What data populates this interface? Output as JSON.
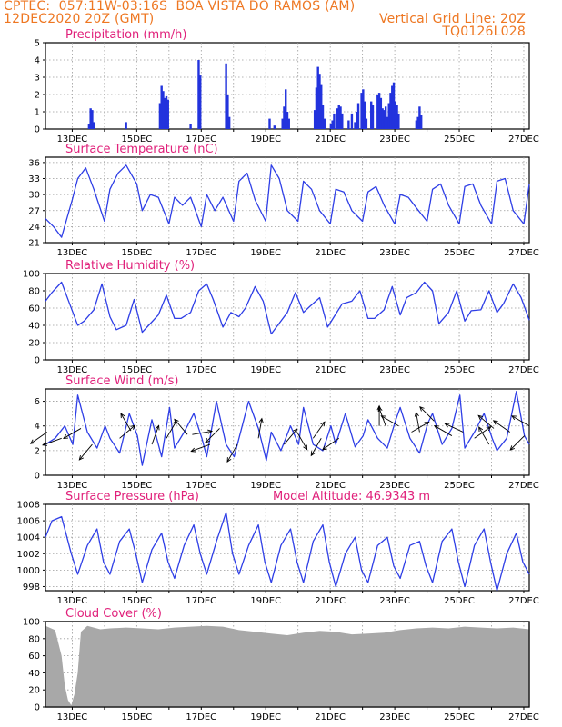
{
  "header": {
    "line1_left": "CPTEC:  057:11W-03:16S  BOA VISTA DO RAMOS (AM)",
    "line2_left": "12DEC2020 20Z (GMT)",
    "line2_right": "Vertical Grid Line: 20Z",
    "line3_right": "TQ0126L028"
  },
  "colors": {
    "header": "#ee7722",
    "title": "#e0207a",
    "series": "#2e3ee6",
    "bars": "#2233dd",
    "cloud": "#a8a8a8"
  },
  "chart_data": [
    {
      "type": "bar",
      "title": "Precipitation (mm/h)",
      "ylim": [
        0,
        5
      ],
      "yticks": [
        "0",
        "1",
        "2",
        "3",
        "4",
        "5"
      ],
      "xticks": [
        "13DEC",
        "15DEC",
        "17DEC",
        "19DEC",
        "21DEC",
        "23DEC",
        "25DEC",
        "27DEC"
      ],
      "bars": [
        [
          13.35,
          0.3
        ],
        [
          13.4,
          1.2
        ],
        [
          13.45,
          1.1
        ],
        [
          13.5,
          0.4
        ],
        [
          14.5,
          0.4
        ],
        [
          15.55,
          1.5
        ],
        [
          15.6,
          2.5
        ],
        [
          15.65,
          2.2
        ],
        [
          15.7,
          1.8
        ],
        [
          15.75,
          1.9
        ],
        [
          15.8,
          1.7
        ],
        [
          16.5,
          0.3
        ],
        [
          16.75,
          4.0
        ],
        [
          16.8,
          3.1
        ],
        [
          17.6,
          3.8
        ],
        [
          17.65,
          2.0
        ],
        [
          17.7,
          0.7
        ],
        [
          18.95,
          0.6
        ],
        [
          19.1,
          0.2
        ],
        [
          19.35,
          0.6
        ],
        [
          19.4,
          1.3
        ],
        [
          19.45,
          2.3
        ],
        [
          19.5,
          1.0
        ],
        [
          19.55,
          0.6
        ],
        [
          20.35,
          1.1
        ],
        [
          20.4,
          2.4
        ],
        [
          20.45,
          3.6
        ],
        [
          20.5,
          3.2
        ],
        [
          20.55,
          2.6
        ],
        [
          20.6,
          1.4
        ],
        [
          20.65,
          0.6
        ],
        [
          20.85,
          0.3
        ],
        [
          20.9,
          0.5
        ],
        [
          20.95,
          0.9
        ],
        [
          21.05,
          1.2
        ],
        [
          21.1,
          1.4
        ],
        [
          21.15,
          1.3
        ],
        [
          21.2,
          0.9
        ],
        [
          21.4,
          0.5
        ],
        [
          21.5,
          0.9
        ],
        [
          21.6,
          0.4
        ],
        [
          21.65,
          1.0
        ],
        [
          21.7,
          1.5
        ],
        [
          21.8,
          2.1
        ],
        [
          21.85,
          2.3
        ],
        [
          21.9,
          1.6
        ],
        [
          21.95,
          0.6
        ],
        [
          22.1,
          1.6
        ],
        [
          22.15,
          1.4
        ],
        [
          22.3,
          2.0
        ],
        [
          22.35,
          2.1
        ],
        [
          22.4,
          1.8
        ],
        [
          22.45,
          1.2
        ],
        [
          22.5,
          1.1
        ],
        [
          22.55,
          1.3
        ],
        [
          22.6,
          0.7
        ],
        [
          22.65,
          1.5
        ],
        [
          22.7,
          2.1
        ],
        [
          22.75,
          2.5
        ],
        [
          22.8,
          2.7
        ],
        [
          22.85,
          1.6
        ],
        [
          22.9,
          1.4
        ],
        [
          22.95,
          0.9
        ],
        [
          23.5,
          0.5
        ],
        [
          23.55,
          0.7
        ],
        [
          23.6,
          1.3
        ],
        [
          23.65,
          0.8
        ]
      ]
    },
    {
      "type": "line",
      "title": "Surface Temperature (nC)",
      "ylim": [
        21,
        37
      ],
      "yticks": [
        "21",
        "24",
        "27",
        "30",
        "33",
        "36"
      ],
      "xticks": [
        "13DEC",
        "15DEC",
        "17DEC",
        "19DEC",
        "21DEC",
        "23DEC",
        "25DEC",
        "27DEC"
      ],
      "x": [
        12,
        12.25,
        12.5,
        12.83,
        13,
        13.25,
        13.5,
        13.83,
        14,
        14.25,
        14.5,
        14.83,
        15,
        15.25,
        15.5,
        15.83,
        16,
        16.25,
        16.5,
        16.83,
        17,
        17.25,
        17.5,
        17.83,
        18,
        18.25,
        18.5,
        18.83,
        19,
        19.25,
        19.5,
        19.83,
        20,
        20.25,
        20.5,
        20.83,
        21,
        21.25,
        21.5,
        21.83,
        22,
        22.25,
        22.5,
        22.83,
        23,
        23.25,
        23.5,
        23.83,
        24,
        24.25,
        24.5,
        24.83,
        25,
        25.25,
        25.5,
        25.83,
        26,
        26.25,
        26.5,
        26.83,
        27
      ],
      "values": [
        25.5,
        24,
        22,
        29,
        33,
        35,
        31,
        25,
        31,
        34,
        35.5,
        32,
        27,
        30,
        29.5,
        24.5,
        29.5,
        28,
        29.5,
        24,
        30,
        27,
        29.5,
        25,
        32.5,
        34,
        29,
        25,
        35.5,
        33,
        27,
        25,
        32.5,
        31,
        27,
        24.5,
        31,
        30.5,
        27,
        25,
        30.5,
        31.5,
        28,
        24.5,
        30,
        29.5,
        27.5,
        25,
        31,
        32,
        28,
        24.5,
        31.5,
        32,
        28,
        24.5,
        32.5,
        33,
        27,
        24.5,
        32
      ]
    },
    {
      "type": "line",
      "title": "Relative Humidity (%)",
      "ylim": [
        0,
        100
      ],
      "yticks": [
        "0",
        "20",
        "40",
        "60",
        "80",
        "100"
      ],
      "xticks": [
        "13DEC",
        "15DEC",
        "17DEC",
        "19DEC",
        "21DEC",
        "23DEC",
        "25DEC",
        "27DEC"
      ],
      "x": [
        12,
        12.2,
        12.5,
        12.75,
        13,
        13.2,
        13.5,
        13.75,
        14,
        14.2,
        14.5,
        14.75,
        15,
        15.2,
        15.5,
        15.75,
        16,
        16.2,
        16.5,
        16.75,
        17,
        17.2,
        17.5,
        17.75,
        18,
        18.2,
        18.5,
        18.75,
        19,
        19.2,
        19.5,
        19.75,
        20,
        20.2,
        20.5,
        20.75,
        21,
        21.2,
        21.5,
        21.75,
        22,
        22.2,
        22.5,
        22.75,
        23,
        23.2,
        23.5,
        23.75,
        24,
        24.2,
        24.5,
        24.75,
        25,
        25.2,
        25.5,
        25.75,
        26,
        26.2,
        26.5,
        26.75,
        27
      ],
      "values": [
        68,
        78,
        90,
        65,
        40,
        45,
        58,
        88,
        50,
        35,
        40,
        70,
        32,
        40,
        52,
        75,
        48,
        48,
        55,
        80,
        88,
        70,
        38,
        55,
        50,
        60,
        85,
        68,
        30,
        40,
        55,
        78,
        55,
        62,
        72,
        38,
        53,
        65,
        68,
        80,
        48,
        48,
        58,
        85,
        52,
        72,
        78,
        90,
        80,
        42,
        55,
        80,
        45,
        57,
        58,
        80,
        55,
        65,
        88,
        72,
        46
      ]
    },
    {
      "type": "line",
      "title": "Surface Wind (m/s)",
      "ylim": [
        0,
        7
      ],
      "yticks": [
        "0",
        "2",
        "4",
        "6"
      ],
      "xticks": [
        "13DEC",
        "15DEC",
        "17DEC",
        "19DEC",
        "21DEC",
        "23DEC",
        "25DEC",
        "27DEC"
      ],
      "x": [
        12,
        12.3,
        12.6,
        12.85,
        13,
        13.3,
        13.6,
        13.85,
        14,
        14.3,
        14.6,
        14.85,
        15,
        15.3,
        15.6,
        15.85,
        16,
        16.3,
        16.6,
        16.85,
        17,
        17.3,
        17.6,
        17.85,
        18,
        18.3,
        18.6,
        18.85,
        19,
        19.3,
        19.6,
        19.85,
        20,
        20.3,
        20.6,
        20.85,
        21,
        21.3,
        21.6,
        21.85,
        22,
        22.3,
        22.6,
        22.85,
        23,
        23.3,
        23.6,
        23.85,
        24,
        24.3,
        24.6,
        24.85,
        25,
        25.3,
        25.6,
        25.85,
        26,
        26.3,
        26.6,
        26.85,
        27
      ],
      "values": [
        2.5,
        3,
        4,
        2.5,
        6.5,
        3.5,
        2.2,
        4,
        3,
        1.8,
        5,
        3.2,
        0.8,
        4.5,
        1.5,
        5.5,
        2.2,
        3.5,
        5,
        3,
        1.5,
        6,
        2.5,
        1.5,
        3,
        6,
        3.8,
        1.2,
        3.5,
        2,
        4,
        2.5,
        5.5,
        2.5,
        2,
        4,
        2.5,
        5,
        2.3,
        3.2,
        4.5,
        3,
        2.2,
        4.4,
        5.5,
        3,
        1.8,
        4.2,
        5,
        2.5,
        3.8,
        6.5,
        2.2,
        3.5,
        5,
        3,
        2,
        3,
        6.8,
        3.2,
        2.5
      ],
      "arrows": [
        [
          12.05,
          3.5,
          215
        ],
        [
          12.5,
          3,
          200
        ],
        [
          13.1,
          3.8,
          210
        ],
        [
          13.45,
          2.5,
          230
        ],
        [
          14.3,
          3,
          40
        ],
        [
          14.65,
          3.6,
          120
        ],
        [
          15.3,
          2.5,
          70
        ],
        [
          15.75,
          3,
          60
        ],
        [
          16.4,
          3.3,
          130
        ],
        [
          16.55,
          3.3,
          10
        ],
        [
          17.1,
          2.5,
          200
        ],
        [
          17.4,
          3.8,
          225
        ],
        [
          17.95,
          2.5,
          240
        ],
        [
          18.6,
          3,
          80
        ],
        [
          19.4,
          2.5,
          50
        ],
        [
          19.8,
          3.5,
          300
        ],
        [
          20.3,
          3,
          55
        ],
        [
          20.55,
          3,
          240
        ],
        [
          21.1,
          3,
          215
        ],
        [
          22.35,
          4,
          90
        ],
        [
          22.55,
          4,
          110
        ],
        [
          22.95,
          4,
          150
        ],
        [
          23.35,
          3.5,
          30
        ],
        [
          23.6,
          3.5,
          100
        ],
        [
          24.05,
          4.4,
          135
        ],
        [
          24.6,
          3.2,
          150
        ],
        [
          24.95,
          3.5,
          155
        ],
        [
          25.3,
          3,
          35
        ],
        [
          25.75,
          2.5,
          120
        ],
        [
          25.9,
          3.8,
          140
        ],
        [
          26.4,
          3.5,
          145
        ],
        [
          26.85,
          3.2,
          225
        ],
        [
          27,
          4,
          150
        ]
      ]
    },
    {
      "type": "line",
      "title": "Surface Pressure (hPa)",
      "annotation": "Model Altitude: 46.9343 m",
      "ylim": [
        997.5,
        1008
      ],
      "yticks": [
        "998",
        "1000",
        "1002",
        "1004",
        "1006",
        "1008"
      ],
      "xticks": [
        "13DEC",
        "15DEC",
        "17DEC",
        "19DEC",
        "21DEC",
        "23DEC",
        "25DEC",
        "27DEC"
      ],
      "x": [
        12,
        12.2,
        12.5,
        12.8,
        13,
        13.3,
        13.6,
        13.8,
        14,
        14.3,
        14.6,
        14.8,
        15,
        15.3,
        15.6,
        15.8,
        16,
        16.3,
        16.6,
        16.8,
        17,
        17.3,
        17.6,
        17.8,
        18,
        18.3,
        18.6,
        18.8,
        19,
        19.3,
        19.6,
        19.8,
        20,
        20.3,
        20.6,
        20.8,
        21,
        21.3,
        21.6,
        21.8,
        22,
        22.3,
        22.6,
        22.8,
        23,
        23.3,
        23.6,
        23.8,
        24,
        24.3,
        24.6,
        24.8,
        25,
        25.3,
        25.6,
        25.8,
        26,
        26.3,
        26.6,
        26.8,
        27
      ],
      "values": [
        1004,
        1006,
        1006.5,
        1002,
        999.5,
        1003,
        1005,
        1001,
        999.5,
        1003.5,
        1005,
        1002,
        998.5,
        1002.5,
        1004.5,
        1001,
        999,
        1003,
        1005.5,
        1002,
        999.5,
        1003.5,
        1007,
        1002,
        999.5,
        1003,
        1005.5,
        1001,
        998.5,
        1003,
        1005,
        1001,
        998.5,
        1003.5,
        1005.5,
        1001,
        998,
        1002,
        1004,
        1000,
        998.5,
        1003,
        1004,
        1000.5,
        999,
        1003,
        1003.5,
        1000.5,
        998.5,
        1003.5,
        1005,
        1001,
        998,
        1003,
        1005,
        1001,
        997.5,
        1002,
        1004.5,
        1001,
        999.5
      ]
    },
    {
      "type": "bar",
      "title": "Cloud Cover (%)",
      "ylim": [
        0,
        100
      ],
      "yticks": [
        "0",
        "20",
        "40",
        "60",
        "80",
        "100"
      ],
      "xticks": [
        "13DEC",
        "15DEC",
        "17DEC",
        "19DEC",
        "21DEC",
        "23DEC",
        "25DEC",
        "27DEC"
      ],
      "x": [
        12,
        12.3,
        12.5,
        12.6,
        12.7,
        12.8,
        12.9,
        13,
        13.1,
        13.3,
        13.5,
        13.7,
        14,
        14.5,
        15,
        15.5,
        16,
        16.5,
        17,
        17.5,
        18,
        18.5,
        19,
        19.5,
        20,
        20.5,
        21,
        21.5,
        22,
        22.5,
        23,
        23.5,
        24,
        24.5,
        25,
        25.5,
        26,
        26.5,
        27
      ],
      "values": [
        95,
        90,
        60,
        25,
        8,
        2,
        15,
        40,
        88,
        95,
        93,
        91,
        92,
        93,
        92,
        91,
        93,
        94,
        95,
        94,
        90,
        88,
        86,
        84,
        87,
        89,
        88,
        85,
        86,
        87,
        90,
        92,
        93,
        92,
        94,
        93,
        92,
        93,
        91
      ]
    }
  ]
}
